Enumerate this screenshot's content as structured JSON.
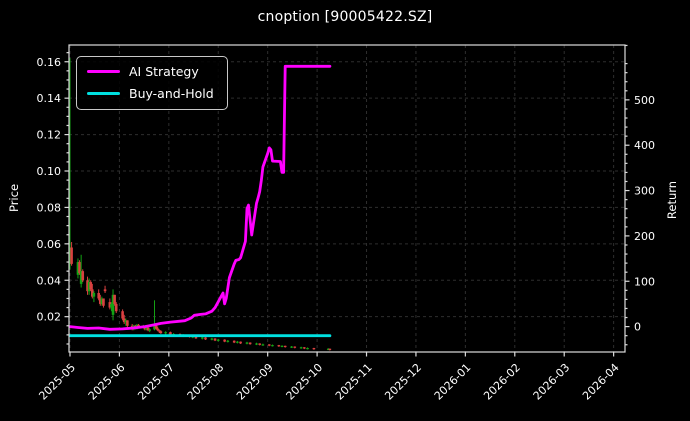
{
  "title": "cnoption [90005422.SZ]",
  "chart_data": {
    "type": "candlestick+line-dual-axis",
    "title": "cnoption [90005422.SZ]",
    "background": "#000000",
    "text_color": "#ffffff",
    "grid_color": "#2e2e2e",
    "spine_color": "#dcdcdc",
    "x_axis": {
      "tick_labels": [
        "2025-05",
        "2025-06",
        "2025-07",
        "2025-08",
        "2025-09",
        "2025-10",
        "2025-11",
        "2025-12",
        "2026-01",
        "2026-02",
        "2026-03",
        "2026-04"
      ],
      "lim_months": [
        -0.02,
        11.23
      ],
      "tick_rotation_deg": 45
    },
    "left_axis": {
      "label": "Price",
      "ticks": [
        0.02,
        0.04,
        0.06,
        0.08,
        0.1,
        0.12,
        0.14,
        0.16
      ],
      "lim": [
        0.0006,
        0.1692
      ],
      "minor_step": 0.005
    },
    "right_axis": {
      "label": "Return",
      "ticks": [
        0,
        100,
        200,
        300,
        400,
        500
      ],
      "lim": [
        -56,
        621
      ],
      "minor_step": 20
    },
    "legend": {
      "position": "upper-left",
      "items": [
        {
          "label": "AI Strategy",
          "color": "#ff00ff"
        },
        {
          "label": "Buy-and-Hold",
          "color": "#00e0e0"
        }
      ]
    },
    "candles": {
      "up_color": "#14a314",
      "down_color": "#d84040",
      "columns": [
        "date",
        "open",
        "high",
        "low",
        "close"
      ],
      "rows": [
        [
          "2025-05-01",
          0.05,
          0.162,
          0.046,
          0.053
        ],
        [
          "2025-05-02",
          0.058,
          0.061,
          0.048,
          0.049
        ],
        [
          "2025-05-06",
          0.043,
          0.052,
          0.041,
          0.05
        ],
        [
          "2025-05-07",
          0.05,
          0.051,
          0.043,
          0.044
        ],
        [
          "2025-05-08",
          0.038,
          0.054,
          0.036,
          0.045
        ],
        [
          "2025-05-09",
          0.045,
          0.046,
          0.039,
          0.04
        ],
        [
          "2025-05-12",
          0.04,
          0.042,
          0.032,
          0.034
        ],
        [
          "2025-05-13",
          0.034,
          0.041,
          0.032,
          0.039
        ],
        [
          "2025-05-14",
          0.039,
          0.04,
          0.034,
          0.035
        ],
        [
          "2025-05-15",
          0.035,
          0.038,
          0.03,
          0.031
        ],
        [
          "2025-05-16",
          0.031,
          0.034,
          0.028,
          0.033
        ],
        [
          "2025-05-19",
          0.033,
          0.035,
          0.029,
          0.03
        ],
        [
          "2025-05-20",
          0.03,
          0.032,
          0.026,
          0.027
        ],
        [
          "2025-05-21",
          0.027,
          0.031,
          0.026,
          0.03
        ],
        [
          "2025-05-22",
          0.03,
          0.03,
          0.025,
          0.026
        ],
        [
          "2025-05-23",
          0.035,
          0.037,
          0.033,
          0.034
        ],
        [
          "2025-05-26",
          0.028,
          0.03,
          0.024,
          0.025
        ],
        [
          "2025-05-27",
          0.025,
          0.028,
          0.023,
          0.027
        ],
        [
          "2025-05-28",
          0.021,
          0.035,
          0.018,
          0.032
        ],
        [
          "2025-05-29",
          0.032,
          0.032,
          0.026,
          0.027
        ],
        [
          "2025-05-30",
          0.027,
          0.028,
          0.022,
          0.023
        ],
        [
          "2025-06-03",
          0.023,
          0.024,
          0.018,
          0.019
        ],
        [
          "2025-06-04",
          0.019,
          0.021,
          0.016,
          0.017
        ],
        [
          "2025-06-05",
          0.017,
          0.019,
          0.015,
          0.018
        ],
        [
          "2025-06-06",
          0.018,
          0.018,
          0.014,
          0.015
        ],
        [
          "2025-06-09",
          0.015,
          0.016,
          0.0125,
          0.013
        ],
        [
          "2025-06-10",
          0.013,
          0.0155,
          0.0125,
          0.015
        ],
        [
          "2025-06-11",
          0.015,
          0.0155,
          0.013,
          0.0135
        ],
        [
          "2025-06-12",
          0.0135,
          0.016,
          0.013,
          0.0155
        ],
        [
          "2025-06-13",
          0.0155,
          0.016,
          0.0135,
          0.014
        ],
        [
          "2025-06-16",
          0.014,
          0.0155,
          0.0135,
          0.015
        ],
        [
          "2025-06-17",
          0.015,
          0.015,
          0.0125,
          0.013
        ],
        [
          "2025-06-18",
          0.013,
          0.0145,
          0.0125,
          0.014
        ],
        [
          "2025-06-19",
          0.014,
          0.0145,
          0.012,
          0.0125
        ],
        [
          "2025-06-20",
          0.0125,
          0.0135,
          0.0115,
          0.013
        ],
        [
          "2025-06-23",
          0.013,
          0.029,
          0.0125,
          0.016
        ],
        [
          "2025-06-24",
          0.016,
          0.0165,
          0.013,
          0.0135
        ],
        [
          "2025-06-25",
          0.0135,
          0.0145,
          0.012,
          0.0125
        ],
        [
          "2025-06-26",
          0.0125,
          0.013,
          0.011,
          0.012
        ],
        [
          "2025-06-27",
          0.012,
          0.0125,
          0.0105,
          0.011
        ],
        [
          "2025-06-30",
          0.011,
          0.012,
          0.0102,
          0.0115
        ],
        [
          "2025-07-02",
          0.0115,
          0.0118,
          0.0098,
          0.0102
        ],
        [
          "2025-07-04",
          0.0102,
          0.011,
          0.0095,
          0.0105
        ],
        [
          "2025-07-08",
          0.0105,
          0.0108,
          0.009,
          0.0094
        ],
        [
          "2025-07-10",
          0.0094,
          0.0104,
          0.0088,
          0.0098
        ],
        [
          "2025-07-14",
          0.0098,
          0.01,
          0.0085,
          0.0088
        ],
        [
          "2025-07-16",
          0.0088,
          0.0096,
          0.0082,
          0.0092
        ],
        [
          "2025-07-18",
          0.0092,
          0.0094,
          0.0078,
          0.0081
        ],
        [
          "2025-07-22",
          0.0081,
          0.009,
          0.0075,
          0.0086
        ],
        [
          "2025-07-24",
          0.0086,
          0.0088,
          0.0072,
          0.0075
        ],
        [
          "2025-07-28",
          0.0075,
          0.0084,
          0.007,
          0.008
        ],
        [
          "2025-07-30",
          0.008,
          0.0082,
          0.0066,
          0.0069
        ],
        [
          "2025-08-01",
          0.0069,
          0.0078,
          0.0064,
          0.0074
        ],
        [
          "2025-08-05",
          0.0074,
          0.0076,
          0.006,
          0.0063
        ],
        [
          "2025-08-07",
          0.0063,
          0.0072,
          0.0058,
          0.0068
        ],
        [
          "2025-08-11",
          0.0068,
          0.007,
          0.0055,
          0.0058
        ],
        [
          "2025-08-13",
          0.0058,
          0.0067,
          0.0053,
          0.0063
        ],
        [
          "2025-08-15",
          0.0063,
          0.0064,
          0.005,
          0.0053
        ],
        [
          "2025-08-19",
          0.0053,
          0.0062,
          0.0048,
          0.0058
        ],
        [
          "2025-08-21",
          0.0058,
          0.0059,
          0.0046,
          0.0049
        ],
        [
          "2025-08-25",
          0.0049,
          0.0057,
          0.0044,
          0.0053
        ],
        [
          "2025-08-27",
          0.0053,
          0.0054,
          0.0042,
          0.0045
        ],
        [
          "2025-08-29",
          0.0045,
          0.0052,
          0.004,
          0.0048
        ],
        [
          "2025-09-02",
          0.0048,
          0.0049,
          0.0038,
          0.0041
        ],
        [
          "2025-09-04",
          0.0041,
          0.0047,
          0.0036,
          0.0044
        ],
        [
          "2025-09-08",
          0.0044,
          0.0045,
          0.0034,
          0.0037
        ],
        [
          "2025-09-10",
          0.0037,
          0.0043,
          0.0032,
          0.004
        ],
        [
          "2025-09-12",
          0.004,
          0.0041,
          0.003,
          0.0033
        ],
        [
          "2025-09-16",
          0.0033,
          0.0039,
          0.0028,
          0.0036
        ],
        [
          "2025-09-18",
          0.0036,
          0.0037,
          0.0026,
          0.0029
        ],
        [
          "2025-09-22",
          0.0029,
          0.0035,
          0.0024,
          0.0032
        ],
        [
          "2025-09-24",
          0.0032,
          0.0033,
          0.0022,
          0.0025
        ],
        [
          "2025-09-26",
          0.0025,
          0.0031,
          0.002,
          0.0028
        ],
        [
          "2025-09-30",
          0.0028,
          0.0029,
          0.0018,
          0.0021
        ],
        [
          "2025-10-08",
          0.0021,
          0.0027,
          0.0016,
          0.0024
        ],
        [
          "2025-10-09",
          0.0024,
          0.0025,
          0.0014,
          0.0017
        ]
      ]
    },
    "series": [
      {
        "name": "AI Strategy",
        "axis": "right",
        "color": "#ff00ff",
        "line_width": 2.8,
        "points": [
          [
            "2025-05-01",
            0
          ],
          [
            "2025-05-06",
            -2
          ],
          [
            "2025-05-12",
            -4
          ],
          [
            "2025-05-19",
            -3
          ],
          [
            "2025-05-26",
            -6
          ],
          [
            "2025-06-03",
            -5
          ],
          [
            "2025-06-10",
            -3
          ],
          [
            "2025-06-17",
            0
          ],
          [
            "2025-06-23",
            4
          ],
          [
            "2025-06-27",
            7
          ],
          [
            "2025-07-02",
            10
          ],
          [
            "2025-07-08",
            12
          ],
          [
            "2025-07-11",
            13
          ],
          [
            "2025-07-15",
            19
          ],
          [
            "2025-07-17",
            25
          ],
          [
            "2025-07-21",
            27
          ],
          [
            "2025-07-24",
            28
          ],
          [
            "2025-07-28",
            34
          ],
          [
            "2025-07-30",
            42
          ],
          [
            "2025-08-01",
            55
          ],
          [
            "2025-08-04",
            74
          ],
          [
            "2025-08-05",
            50
          ],
          [
            "2025-08-06",
            62
          ],
          [
            "2025-08-07",
            85
          ],
          [
            "2025-08-08",
            108
          ],
          [
            "2025-08-11",
            138
          ],
          [
            "2025-08-12",
            146
          ],
          [
            "2025-08-14",
            148
          ],
          [
            "2025-08-15",
            152
          ],
          [
            "2025-08-18",
            188
          ],
          [
            "2025-08-19",
            260
          ],
          [
            "2025-08-20",
            268
          ],
          [
            "2025-08-21",
            235
          ],
          [
            "2025-08-22",
            202
          ],
          [
            "2025-08-25",
            272
          ],
          [
            "2025-08-26",
            284
          ],
          [
            "2025-08-27",
            298
          ],
          [
            "2025-08-28",
            322
          ],
          [
            "2025-08-29",
            352
          ],
          [
            "2025-09-01",
            382
          ],
          [
            "2025-09-02",
            394
          ],
          [
            "2025-09-03",
            390
          ],
          [
            "2025-09-04",
            365
          ],
          [
            "2025-09-09",
            364
          ],
          [
            "2025-09-10",
            340
          ],
          [
            "2025-09-11",
            340
          ],
          [
            "2025-09-12",
            574
          ],
          [
            "2025-10-09",
            574
          ]
        ]
      },
      {
        "name": "Buy-and-Hold",
        "axis": "right",
        "color": "#00e0e0",
        "line_width": 2.8,
        "points": [
          [
            "2025-05-01",
            -20
          ],
          [
            "2025-10-09",
            -20
          ]
        ]
      }
    ]
  }
}
